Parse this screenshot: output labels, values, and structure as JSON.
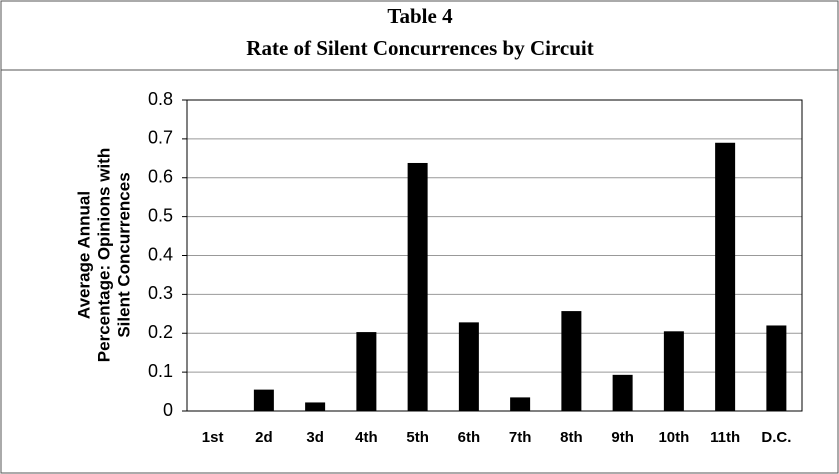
{
  "chart_data": {
    "type": "bar",
    "title": [
      "Table 4",
      "Rate of Silent Concurrences by Circuit"
    ],
    "ylabel": [
      "Average  Annual",
      "Percentage: Opinions with",
      "Silent Concurrences"
    ],
    "categories": [
      "1st",
      "2d",
      "3d",
      "4th",
      "5th",
      "6th",
      "7th",
      "8th",
      "9th",
      "10th",
      "11th",
      "D.C."
    ],
    "values": [
      0,
      0.055,
      0.022,
      0.203,
      0.638,
      0.228,
      0.035,
      0.257,
      0.093,
      0.205,
      0.69,
      0.22
    ],
    "color": "#000000",
    "ylim": [
      0,
      0.8
    ],
    "yticks": [
      0,
      0.1,
      0.2,
      0.3,
      0.4,
      0.5,
      0.6,
      0.7,
      0.8
    ],
    "grid": true
  }
}
